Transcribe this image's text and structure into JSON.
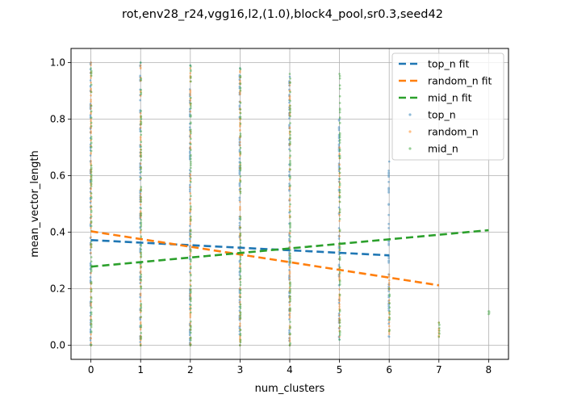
{
  "chart_data": {
    "type": "scatter",
    "title": "rot,env28_r24,vgg16,l2,(1.0),block4_pool,sr0.3,seed42",
    "xlabel": "num_clusters",
    "ylabel": "mean_vector_length",
    "xlim": [
      -0.4,
      8.4
    ],
    "ylim": [
      -0.05,
      1.05
    ],
    "xticks": [
      0,
      1,
      2,
      3,
      4,
      5,
      6,
      7,
      8
    ],
    "yticks": [
      0.0,
      0.2,
      0.4,
      0.6,
      0.8,
      1.0
    ],
    "grid": true,
    "legend_position": "top-right",
    "fit_lines": [
      {
        "name": "top_n fit",
        "color": "#1f77b4",
        "x": [
          0,
          6
        ],
        "y": [
          0.372,
          0.318
        ]
      },
      {
        "name": "random_n fit",
        "color": "#ff7f0e",
        "x": [
          0,
          7
        ],
        "y": [
          0.403,
          0.212
        ]
      },
      {
        "name": "mid_n fit",
        "color": "#2ca02c",
        "x": [
          0,
          8
        ],
        "y": [
          0.278,
          0.407
        ]
      }
    ],
    "scatter_series": [
      {
        "name": "top_n",
        "color": "#1f77b4",
        "columns": [
          {
            "x": 0,
            "ymin": 0.0,
            "ymax": 1.0
          },
          {
            "x": 1,
            "ymin": 0.0,
            "ymax": 1.0
          },
          {
            "x": 2,
            "ymin": 0.0,
            "ymax": 0.99
          },
          {
            "x": 3,
            "ymin": 0.0,
            "ymax": 0.98
          },
          {
            "x": 4,
            "ymin": 0.0,
            "ymax": 0.95
          },
          {
            "x": 5,
            "ymin": 0.02,
            "ymax": 0.8
          },
          {
            "x": 6,
            "ymin": 0.03,
            "ymax": 0.65
          }
        ]
      },
      {
        "name": "random_n",
        "color": "#ff7f0e",
        "columns": [
          {
            "x": 0,
            "ymin": 0.0,
            "ymax": 1.0
          },
          {
            "x": 1,
            "ymin": 0.0,
            "ymax": 0.99
          },
          {
            "x": 2,
            "ymin": 0.0,
            "ymax": 0.98
          },
          {
            "x": 3,
            "ymin": 0.0,
            "ymax": 0.97
          },
          {
            "x": 4,
            "ymin": 0.0,
            "ymax": 0.93
          },
          {
            "x": 5,
            "ymin": 0.03,
            "ymax": 0.7
          },
          {
            "x": 6,
            "ymin": 0.04,
            "ymax": 0.25
          },
          {
            "x": 7,
            "ymin": 0.03,
            "ymax": 0.08
          }
        ]
      },
      {
        "name": "mid_n",
        "color": "#2ca02c",
        "columns": [
          {
            "x": 0,
            "ymin": 0.0,
            "ymax": 0.98
          },
          {
            "x": 1,
            "ymin": 0.0,
            "ymax": 1.0
          },
          {
            "x": 2,
            "ymin": 0.0,
            "ymax": 0.99
          },
          {
            "x": 3,
            "ymin": 0.0,
            "ymax": 0.98
          },
          {
            "x": 4,
            "ymin": 0.0,
            "ymax": 0.96
          },
          {
            "x": 5,
            "ymin": 0.02,
            "ymax": 0.96
          },
          {
            "x": 6,
            "ymin": 0.05,
            "ymax": 0.2
          },
          {
            "x": 7,
            "ymin": 0.03,
            "ymax": 0.08
          },
          {
            "x": 8,
            "ymin": 0.11,
            "ymax": 0.12
          }
        ]
      }
    ],
    "legend": [
      {
        "label": "top_n fit",
        "kind": "line",
        "color": "#1f77b4"
      },
      {
        "label": "random_n fit",
        "kind": "line",
        "color": "#ff7f0e"
      },
      {
        "label": "mid_n fit",
        "kind": "line",
        "color": "#2ca02c"
      },
      {
        "label": "top_n",
        "kind": "dot",
        "color": "#1f77b4"
      },
      {
        "label": "random_n",
        "kind": "dot",
        "color": "#ff7f0e"
      },
      {
        "label": "mid_n",
        "kind": "dot",
        "color": "#2ca02c"
      }
    ]
  }
}
